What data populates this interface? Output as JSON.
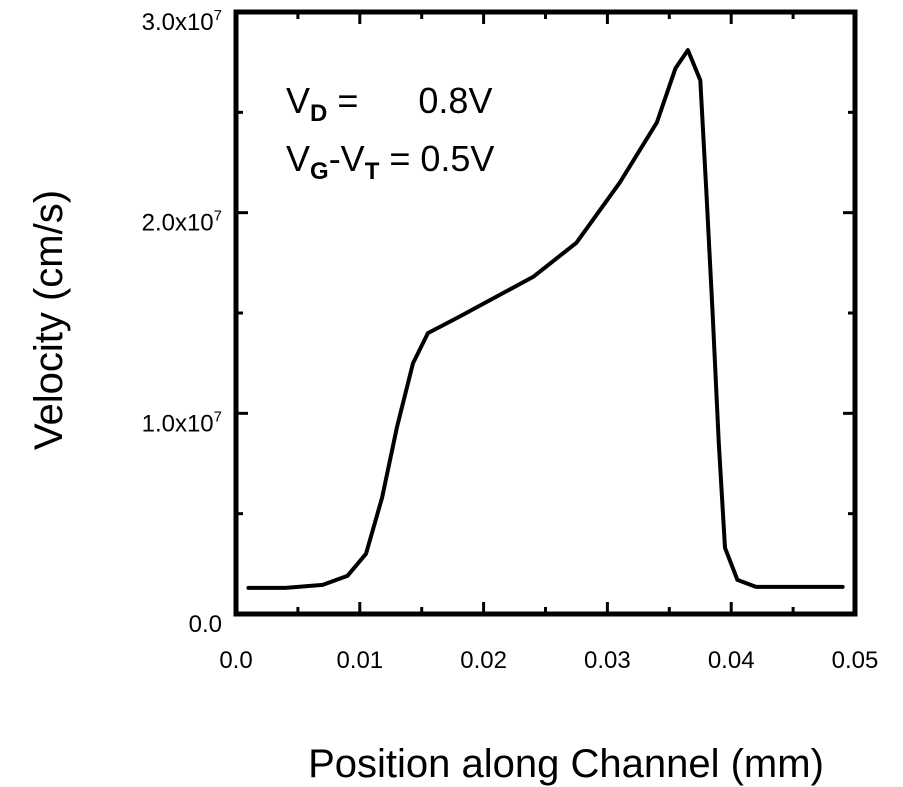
{
  "chart_data": {
    "type": "line",
    "title": "",
    "xlabel": "Position along Channel (mm)",
    "ylabel": "Velocity (cm/s)",
    "xlim": [
      0.0,
      0.05
    ],
    "ylim": [
      0.0,
      30000000
    ],
    "grid": false,
    "x_ticks": [
      {
        "value": 0.0,
        "label": "0.0"
      },
      {
        "value": 0.01,
        "label": "0.01"
      },
      {
        "value": 0.02,
        "label": "0.02"
      },
      {
        "value": 0.03,
        "label": "0.03"
      },
      {
        "value": 0.04,
        "label": "0.04"
      },
      {
        "value": 0.05,
        "label": "0.05"
      }
    ],
    "x_minor_ticks": [
      0.005,
      0.015,
      0.025,
      0.035,
      0.045
    ],
    "y_ticks": [
      {
        "value": 0,
        "mantissa": "0.0",
        "exponent": ""
      },
      {
        "value": 10000000,
        "mantissa": "1.0x10",
        "exponent": "7"
      },
      {
        "value": 20000000,
        "mantissa": "2.0x10",
        "exponent": "7"
      },
      {
        "value": 30000000,
        "mantissa": "3.0x10",
        "exponent": "7"
      }
    ],
    "y_minor_ticks": [
      5000000,
      15000000,
      25000000
    ],
    "annotations": [
      {
        "main": "V",
        "sub": "D",
        "rest": " =      0.8V"
      },
      {
        "main": "V",
        "sub": "G",
        "mid": "-V",
        "sub2": "T",
        "rest": " = 0.5V"
      }
    ],
    "series": [
      {
        "color": "#000000",
        "x": [
          0.001,
          0.004,
          0.007,
          0.009,
          0.0105,
          0.0118,
          0.013,
          0.0143,
          0.0155,
          0.018,
          0.021,
          0.024,
          0.0275,
          0.031,
          0.034,
          0.0355,
          0.0365,
          0.0375,
          0.038,
          0.0385,
          0.039,
          0.0395,
          0.0405,
          0.042,
          0.045,
          0.049
        ],
        "y": [
          1300000,
          1300000,
          1450000,
          1900000,
          3000000,
          5800000,
          9300000,
          12500000,
          14000000,
          14800000,
          15800000,
          16800000,
          18500000,
          21500000,
          24500000,
          27200000,
          28100000,
          26600000,
          21000000,
          15000000,
          8500000,
          3300000,
          1700000,
          1350000,
          1350000,
          1350000
        ]
      }
    ]
  }
}
